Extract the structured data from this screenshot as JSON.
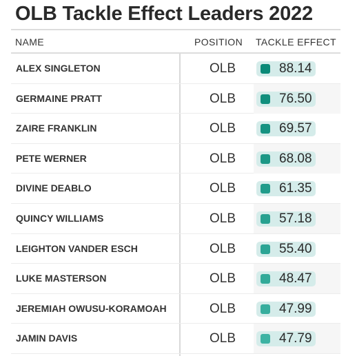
{
  "title": "OLB Tackle Effect Leaders 2022",
  "columns": {
    "name": "NAME",
    "position": "POSITION",
    "tackle_effect": "TACKLE EFFECT"
  },
  "colors": {
    "bar_background": "#d5ecea",
    "square_high": "#0b8a78",
    "square_low": "#3db3a3"
  },
  "chart_data": {
    "type": "table",
    "title": "OLB Tackle Effect Leaders 2022",
    "headers": [
      "NAME",
      "POSITION",
      "TACKLE EFFECT"
    ],
    "rows": [
      {
        "name": "ALEX SINGLETON",
        "position": "OLB",
        "tackle_effect": "88.14"
      },
      {
        "name": "GERMAINE PRATT",
        "position": "OLB",
        "tackle_effect": "76.50"
      },
      {
        "name": "ZAIRE FRANKLIN",
        "position": "OLB",
        "tackle_effect": "69.57"
      },
      {
        "name": "PETE WERNER",
        "position": "OLB",
        "tackle_effect": "68.08"
      },
      {
        "name": "DIVINE DEABLO",
        "position": "OLB",
        "tackle_effect": "61.35"
      },
      {
        "name": "QUINCY WILLIAMS",
        "position": "OLB",
        "tackle_effect": "57.18"
      },
      {
        "name": "LEIGHTON VANDER ESCH",
        "position": "OLB",
        "tackle_effect": "55.40"
      },
      {
        "name": "LUKE MASTERSON",
        "position": "OLB",
        "tackle_effect": "48.47"
      },
      {
        "name": "JEREMIAH OWUSU-KORAMOAH",
        "position": "OLB",
        "tackle_effect": "47.99"
      },
      {
        "name": "JAMIN DAVIS",
        "position": "OLB",
        "tackle_effect": "47.79"
      }
    ]
  }
}
